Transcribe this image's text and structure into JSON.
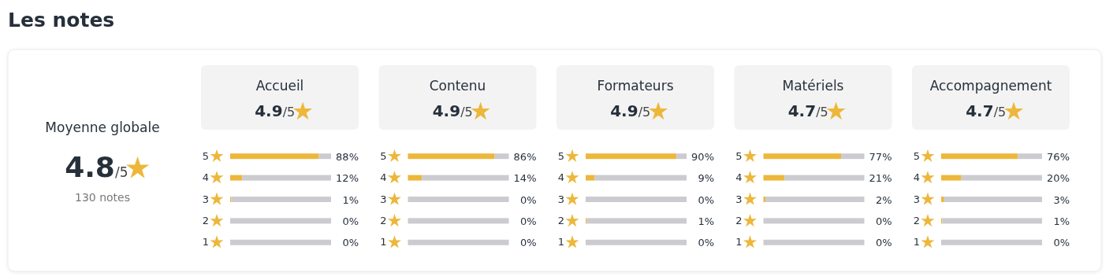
{
  "chart_data": [
    {
      "type": "other",
      "title": "Les notes",
      "subtitle": "Moyenne globale",
      "annotations": [
        "4.8/5",
        "130 notes"
      ]
    },
    {
      "type": "bar",
      "orientation": "horizontal",
      "stacked": true,
      "title": "Accueil",
      "subtitle": "4.9/5",
      "categories": [
        "5",
        "4",
        "3",
        "2",
        "1"
      ],
      "series": [
        {
          "color": "#ecb73b",
          "values": [
            88,
            12,
            1,
            0,
            0
          ],
          "value_labels": [
            "88%",
            "12%",
            "1%",
            "0%",
            "0%"
          ]
        },
        {
          "color": "#cbcbd0",
          "values": [
            12,
            88,
            99,
            100,
            100
          ]
        }
      ],
      "xlim": [
        0,
        100
      ],
      "tick_labels": "y"
    },
    {
      "type": "bar",
      "orientation": "horizontal",
      "stacked": true,
      "title": "Contenu",
      "subtitle": "4.9/5",
      "categories": [
        "5",
        "4",
        "3",
        "2",
        "1"
      ],
      "series": [
        {
          "color": "#ecb73b",
          "values": [
            86,
            14,
            0,
            0,
            0
          ],
          "value_labels": [
            "86%",
            "14%",
            "0%",
            "0%",
            "0%"
          ]
        },
        {
          "color": "#cbcbd0",
          "values": [
            14,
            86,
            100,
            100,
            100
          ]
        }
      ],
      "xlim": [
        0,
        100
      ],
      "tick_labels": "y"
    },
    {
      "type": "bar",
      "orientation": "horizontal",
      "stacked": true,
      "title": "Formateurs",
      "subtitle": "4.9/5",
      "categories": [
        "5",
        "4",
        "3",
        "2",
        "1"
      ],
      "series": [
        {
          "color": "#ecb73b",
          "values": [
            90,
            9,
            0,
            1,
            0
          ],
          "value_labels": [
            "90%",
            "9%",
            "0%",
            "1%",
            "0%"
          ]
        },
        {
          "color": "#cbcbd0",
          "values": [
            10,
            91,
            100,
            99,
            100
          ]
        }
      ],
      "xlim": [
        0,
        100
      ],
      "tick_labels": "y"
    },
    {
      "type": "bar",
      "orientation": "horizontal",
      "stacked": true,
      "title": "Matériels",
      "subtitle": "4.7/5",
      "categories": [
        "5",
        "4",
        "3",
        "2",
        "1"
      ],
      "series": [
        {
          "color": "#ecb73b",
          "values": [
            77,
            21,
            2,
            0,
            0
          ],
          "value_labels": [
            "77%",
            "21%",
            "2%",
            "0%",
            "0%"
          ]
        },
        {
          "color": "#cbcbd0",
          "values": [
            23,
            79,
            98,
            100,
            100
          ]
        }
      ],
      "xlim": [
        0,
        100
      ],
      "tick_labels": "y"
    },
    {
      "type": "bar",
      "orientation": "horizontal",
      "stacked": true,
      "title": "Accompagnement",
      "subtitle": "4.7/5",
      "categories": [
        "5",
        "4",
        "3",
        "2",
        "1"
      ],
      "series": [
        {
          "color": "#ecb73b",
          "values": [
            76,
            20,
            3,
            1,
            0
          ],
          "value_labels": [
            "76%",
            "20%",
            "3%",
            "1%",
            "0%"
          ]
        },
        {
          "color": "#cbcbd0",
          "values": [
            24,
            80,
            97,
            99,
            100
          ]
        }
      ],
      "xlim": [
        0,
        100
      ],
      "tick_labels": "y"
    }
  ]
}
